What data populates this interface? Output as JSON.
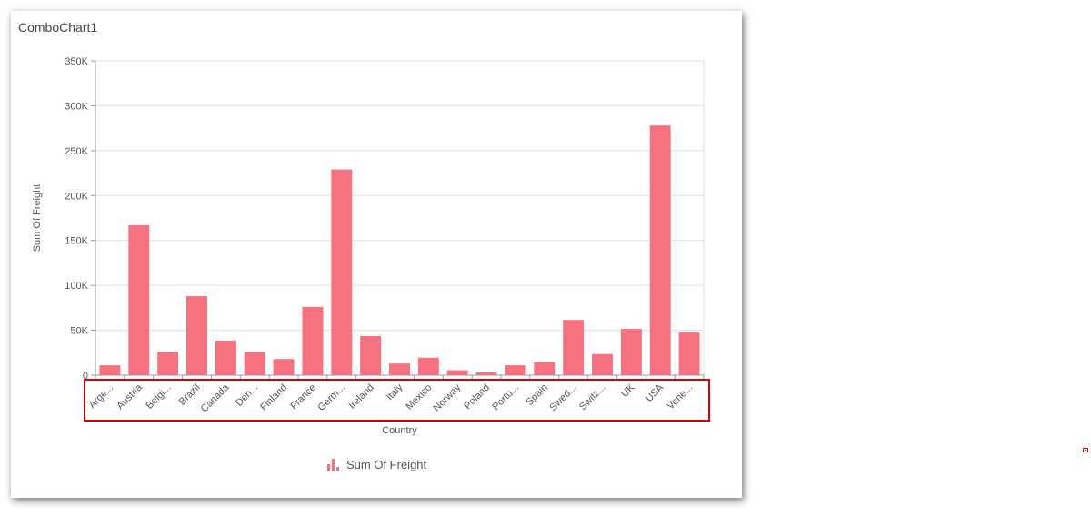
{
  "card": {
    "title": "ComboChart1"
  },
  "legend": {
    "label": "Sum Of Freight",
    "icon": "bar-chart-icon",
    "color": "#f67280"
  },
  "chart_data": {
    "type": "bar",
    "title": "",
    "xlabel": "Country",
    "ylabel": "Sum Of Freight",
    "ylim": [
      0,
      350000
    ],
    "yticks": [
      0,
      50000,
      100000,
      150000,
      200000,
      250000,
      300000,
      350000
    ],
    "ytick_labels": [
      "0",
      "50K",
      "100K",
      "150K",
      "200K",
      "250K",
      "300K",
      "350K"
    ],
    "grid": true,
    "legend_position": "bottom",
    "bar_color": "#f67280",
    "categories": [
      "Arge...",
      "Austria",
      "Belgi...",
      "Brazil",
      "Canada",
      "Den...",
      "Finland",
      "France",
      "Germ...",
      "Ireland",
      "Italy",
      "Mexico",
      "Norway",
      "Poland",
      "Portu...",
      "Spain",
      "Swed...",
      "Switz...",
      "UK",
      "USA",
      "Vene..."
    ],
    "series": [
      {
        "name": "Sum Of Freight",
        "values": [
          11000,
          167000,
          26000,
          88000,
          38500,
          26000,
          18000,
          76000,
          229000,
          43500,
          13000,
          19500,
          5500,
          3000,
          11000,
          14500,
          61500,
          23500,
          51500,
          278000,
          47500
        ]
      }
    ]
  }
}
